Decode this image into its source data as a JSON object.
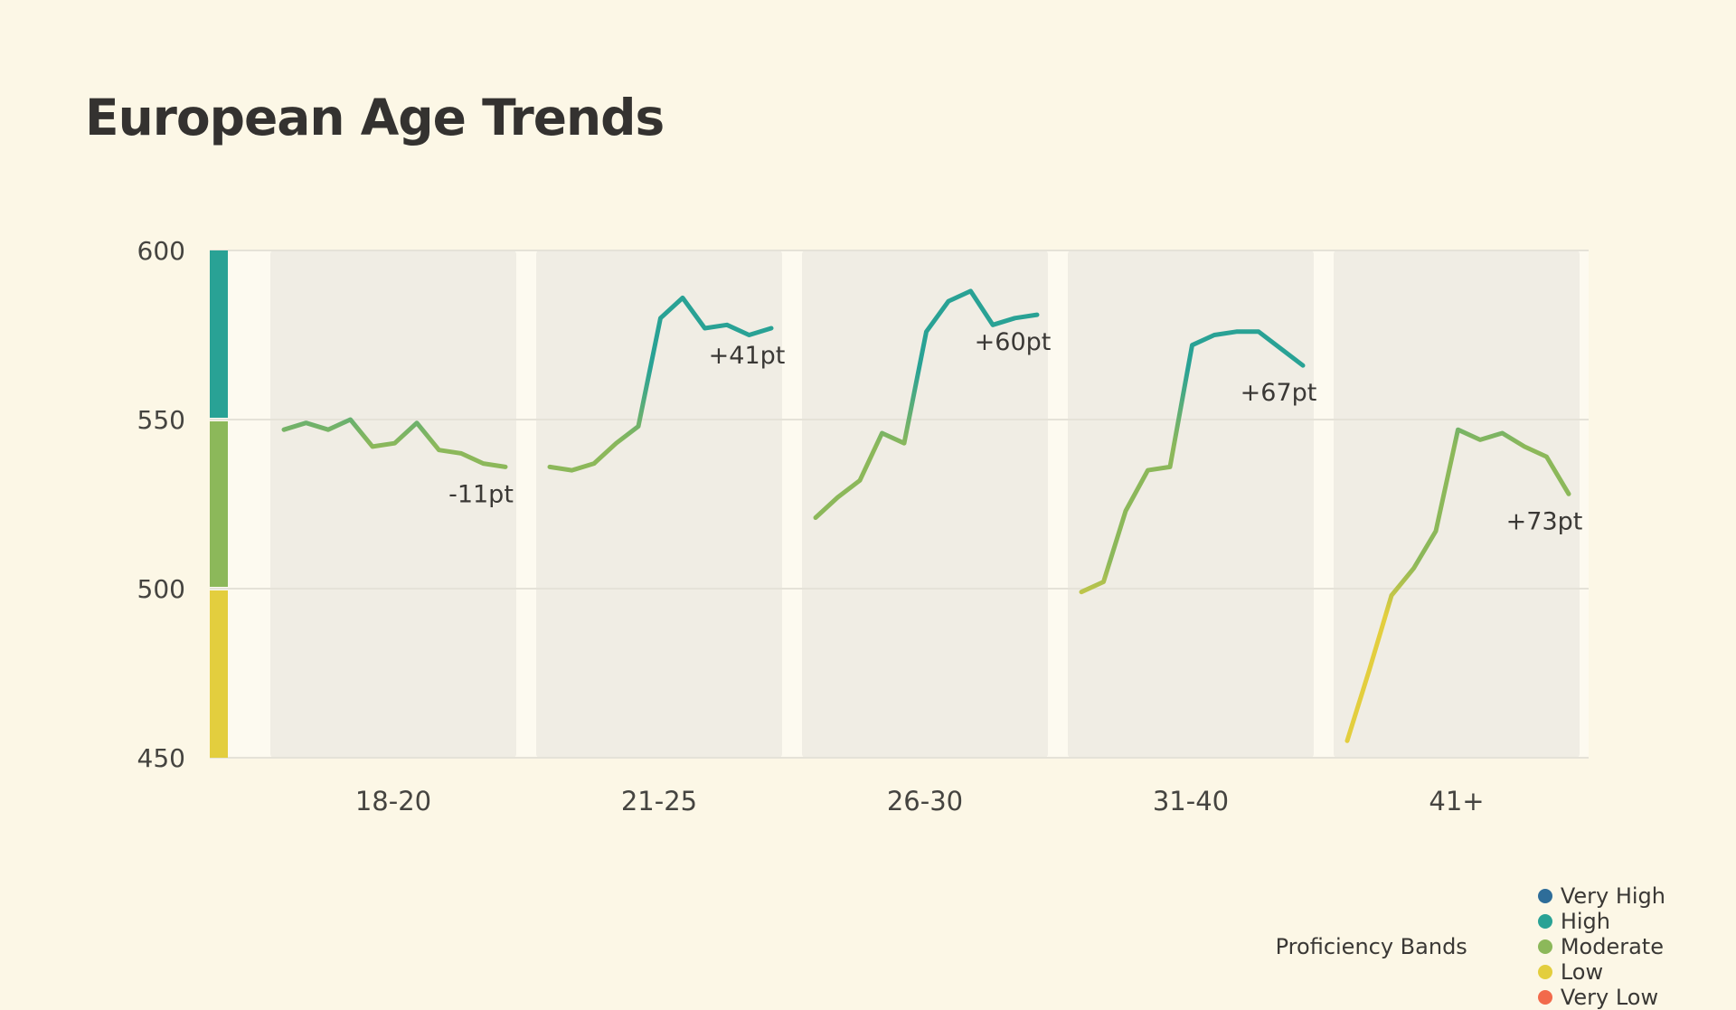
{
  "page": {
    "title": "European Age Trends"
  },
  "chart_data": {
    "type": "line",
    "title": "European Age Trends",
    "categories": [
      "18-20",
      "21-25",
      "26-30",
      "31-40",
      "41+"
    ],
    "xlabel": "",
    "ylabel": "",
    "ylim": [
      450,
      600
    ],
    "y_ticks": [
      600,
      550,
      500,
      450
    ],
    "grid": true,
    "faceted": true,
    "legend_position": "bottom-right",
    "series": [
      {
        "category": "18-20",
        "change_label": "-11pt",
        "values": [
          547,
          549,
          547,
          550,
          542,
          543,
          549,
          541,
          540,
          537,
          536
        ]
      },
      {
        "category": "21-25",
        "change_label": "+41pt",
        "values": [
          536,
          535,
          537,
          543,
          548,
          580,
          586,
          577,
          578,
          575,
          577
        ]
      },
      {
        "category": "26-30",
        "change_label": "+60pt",
        "values": [
          521,
          527,
          532,
          546,
          543,
          576,
          585,
          588,
          578,
          580,
          581
        ]
      },
      {
        "category": "31-40",
        "change_label": "+67pt",
        "values": [
          499,
          502,
          523,
          535,
          536,
          572,
          575,
          576,
          576,
          571,
          566
        ]
      },
      {
        "category": "41+",
        "change_label": "+73pt",
        "values": [
          455,
          476,
          498,
          506,
          517,
          547,
          544,
          546,
          542,
          539,
          528
        ]
      }
    ],
    "bands": [
      {
        "name": "High",
        "from": 550,
        "to": 600,
        "color": "#29A295"
      },
      {
        "name": "Moderate",
        "from": 500,
        "to": 550,
        "color": "#8CB85A"
      },
      {
        "name": "Low",
        "from": 450,
        "to": 500,
        "color": "#E3CE3E"
      }
    ]
  },
  "legend": {
    "label": "Proficiency Bands",
    "items": [
      {
        "label": "Very High",
        "color": "#2E6D99"
      },
      {
        "label": "High",
        "color": "#29A295"
      },
      {
        "label": "Moderate",
        "color": "#8CB85A"
      },
      {
        "label": "Low",
        "color": "#E3CE3E"
      },
      {
        "label": "Very Low",
        "color": "#F26A4B"
      }
    ]
  },
  "colors": {
    "background": "#FCF7E6",
    "plot_strip": "#FDFAF0",
    "panel": "#F0EDE4",
    "gridline": "#E5E2D8",
    "title_text": "#343230",
    "axis_text": "#454440",
    "annotation_text": "#3A3835"
  }
}
